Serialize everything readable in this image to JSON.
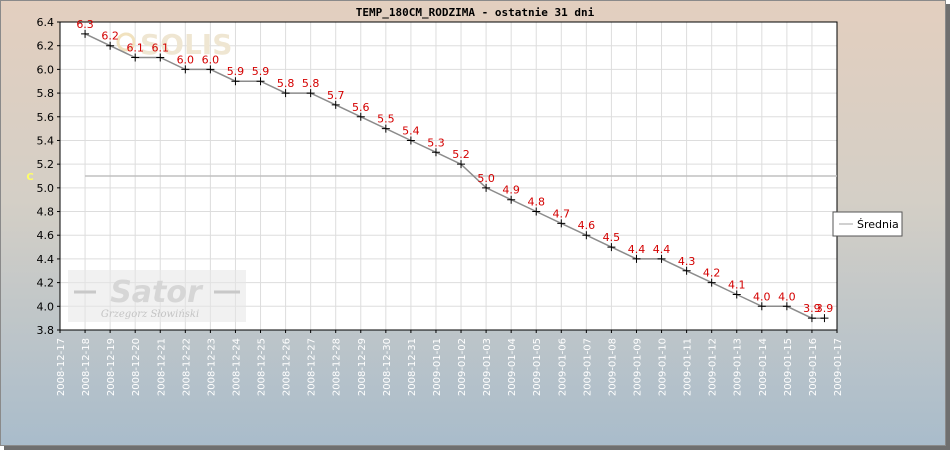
{
  "chart_data": {
    "type": "line",
    "title": "TEMP_180CM_RODZIMA - ostatnie 31 dni",
    "ylabel": "C",
    "xlabel": "",
    "ylim": [
      3.8,
      6.4
    ],
    "yticks": [
      "3.8",
      "4.0",
      "4.2",
      "4.4",
      "4.6",
      "4.8",
      "5.0",
      "5.2",
      "5.4",
      "5.6",
      "5.8",
      "6.0",
      "6.2",
      "6.4"
    ],
    "x_ticks": [
      "2008-12-17",
      "2008-12-18",
      "2008-12-19",
      "2008-12-20",
      "2008-12-21",
      "2008-12-22",
      "2008-12-23",
      "2008-12-24",
      "2008-12-25",
      "2008-12-26",
      "2008-12-27",
      "2008-12-28",
      "2008-12-29",
      "2008-12-30",
      "2008-12-31",
      "2009-01-01",
      "2009-01-02",
      "2009-01-03",
      "2009-01-04",
      "2009-01-05",
      "2009-01-06",
      "2009-01-07",
      "2009-01-08",
      "2009-01-09",
      "2009-01-10",
      "2009-01-11",
      "2009-01-12",
      "2009-01-13",
      "2009-01-14",
      "2009-01-15",
      "2009-01-16",
      "2009-01-17"
    ],
    "x": [
      "2008-12-18",
      "2008-12-19",
      "2008-12-20",
      "2008-12-21",
      "2008-12-22",
      "2008-12-23",
      "2008-12-24",
      "2008-12-25",
      "2008-12-26",
      "2008-12-27",
      "2008-12-28",
      "2008-12-29",
      "2008-12-30",
      "2008-12-31",
      "2009-01-01",
      "2009-01-02",
      "2009-01-03",
      "2009-01-04",
      "2009-01-05",
      "2009-01-06",
      "2009-01-07",
      "2009-01-08",
      "2009-01-09",
      "2009-01-10",
      "2009-01-11",
      "2009-01-12",
      "2009-01-13",
      "2009-01-14",
      "2009-01-15",
      "2009-01-16",
      "2009-01-16 12:00"
    ],
    "series": [
      {
        "name": "",
        "values": [
          6.3,
          6.2,
          6.1,
          6.1,
          6.0,
          6.0,
          5.9,
          5.9,
          5.8,
          5.8,
          5.7,
          5.6,
          5.5,
          5.4,
          5.3,
          5.2,
          5.0,
          4.9,
          4.8,
          4.7,
          4.6,
          4.5,
          4.4,
          4.4,
          4.3,
          4.2,
          4.1,
          4.0,
          4.0,
          3.9,
          3.9
        ],
        "labels": [
          "6.3",
          "6.2",
          "6.1",
          "6.1",
          "6.0",
          "6.0",
          "5.9",
          "5.9",
          "5.8",
          "5.8",
          "5.7",
          "5.6",
          "5.5",
          "5.4",
          "5.3",
          "5.2",
          "5.0",
          "4.9",
          "4.8",
          "4.7",
          "4.6",
          "4.5",
          "4.4",
          "4.4",
          "4.3",
          "4.2",
          "4.1",
          "4.0",
          "4.0",
          "3.9",
          "3.9"
        ],
        "color": "#8c8c8c"
      },
      {
        "name": "Średnia",
        "values": [
          5.1,
          5.1
        ],
        "x": [
          "2008-12-18",
          "2009-01-17"
        ],
        "color": "#c0c0c0"
      }
    ],
    "grid": true,
    "legend": "right",
    "watermark": {
      "brand": "Sator",
      "author": "Grzegorz Słowiński",
      "top_logo": "SOLIS"
    },
    "colors": {
      "line": "#8c8c8c",
      "average": "#c0c0c0",
      "labels": "#d40000",
      "grid": "#dddddd",
      "plot_bg": "#ffffff"
    }
  }
}
